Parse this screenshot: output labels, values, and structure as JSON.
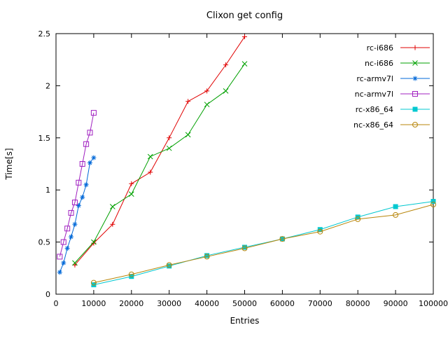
{
  "page": {
    "title": "Clixon get config"
  },
  "chart_data": {
    "type": "line",
    "title": "Clixon get config",
    "xlabel": "Entries",
    "ylabel": "Time[s]",
    "xlim": [
      0,
      100000
    ],
    "ylim": [
      0,
      2.5
    ],
    "x_ticks": [
      0,
      10000,
      20000,
      30000,
      40000,
      50000,
      60000,
      70000,
      80000,
      90000,
      100000
    ],
    "y_ticks": [
      0,
      0.5,
      1,
      1.5,
      2,
      2.5
    ],
    "grid": false,
    "legend_position": "top-right-inside",
    "axis_color": "#000000",
    "background_color": "#ffffff",
    "series": [
      {
        "name": "rc-i686",
        "color": "#e00000",
        "marker": "plus",
        "x": [
          5000,
          10000,
          15000,
          20000,
          25000,
          30000,
          35000,
          40000,
          45000,
          50000
        ],
        "y": [
          0.28,
          0.49,
          0.67,
          1.06,
          1.17,
          1.5,
          1.85,
          1.95,
          2.2,
          2.47
        ]
      },
      {
        "name": "nc-i686",
        "color": "#00a000",
        "marker": "cross",
        "x": [
          5000,
          10000,
          15000,
          20000,
          25000,
          30000,
          35000,
          40000,
          45000,
          50000
        ],
        "y": [
          0.3,
          0.5,
          0.84,
          0.96,
          1.32,
          1.4,
          1.53,
          1.82,
          1.95,
          2.21
        ]
      },
      {
        "name": "rc-armv7l",
        "color": "#0068d8",
        "marker": "asterisk",
        "x": [
          1000,
          2000,
          3000,
          4000,
          5000,
          6000,
          7000,
          8000,
          9000,
          10000
        ],
        "y": [
          0.21,
          0.3,
          0.44,
          0.55,
          0.67,
          0.85,
          0.93,
          1.05,
          1.26,
          1.31
        ]
      },
      {
        "name": "nc-armv7l",
        "color": "#a020c0",
        "marker": "square-open",
        "x": [
          1000,
          2000,
          3000,
          4000,
          5000,
          6000,
          7000,
          8000,
          9000,
          10000
        ],
        "y": [
          0.36,
          0.5,
          0.63,
          0.78,
          0.88,
          1.07,
          1.25,
          1.44,
          1.55,
          1.74
        ]
      },
      {
        "name": "rc-x86_64",
        "color": "#00c8d0",
        "marker": "square-filled",
        "x": [
          10000,
          20000,
          30000,
          40000,
          50000,
          60000,
          70000,
          80000,
          90000,
          100000
        ],
        "y": [
          0.09,
          0.17,
          0.27,
          0.37,
          0.45,
          0.53,
          0.62,
          0.74,
          0.84,
          0.89
        ]
      },
      {
        "name": "nc-x86_64",
        "color": "#b8860b",
        "marker": "circle-open",
        "x": [
          10000,
          20000,
          30000,
          40000,
          50000,
          60000,
          70000,
          80000,
          90000,
          100000
        ],
        "y": [
          0.11,
          0.19,
          0.28,
          0.36,
          0.44,
          0.53,
          0.6,
          0.72,
          0.76,
          0.86
        ]
      }
    ]
  }
}
